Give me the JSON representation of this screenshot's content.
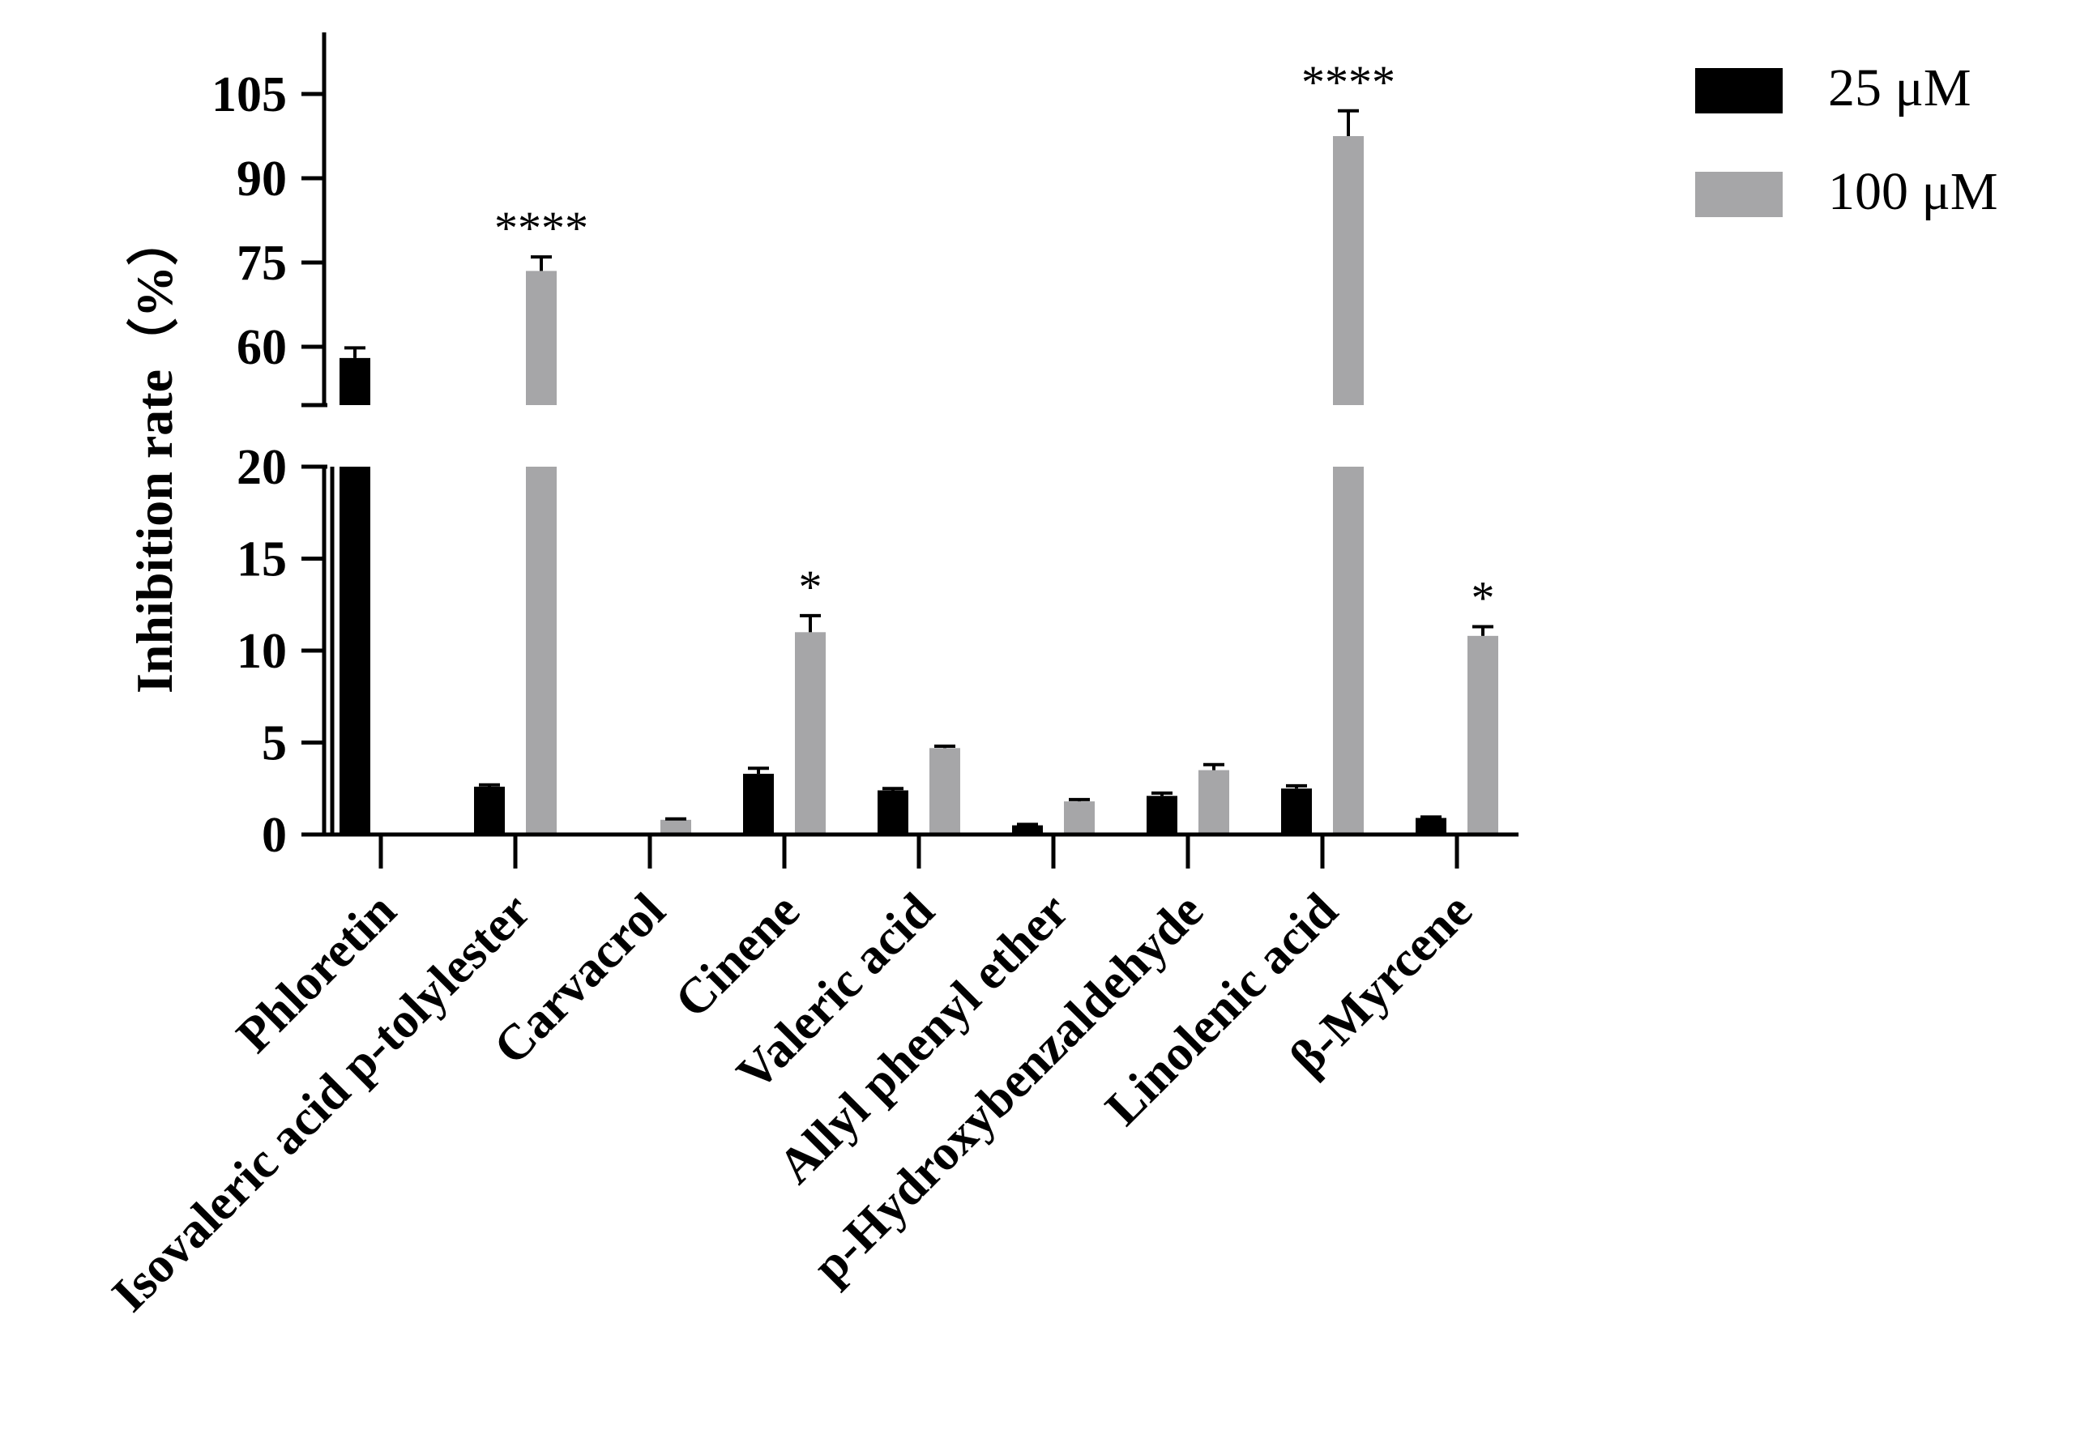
{
  "chart_data": {
    "type": "bar",
    "ylabel": "Inhibition rate（%）",
    "y_axis_segments": [
      {
        "range": [
          0,
          20
        ],
        "ticks": [
          "0",
          "5",
          "10",
          "15",
          "20"
        ]
      },
      {
        "range": [
          50,
          115
        ],
        "ticks": [
          "60",
          "75",
          "90",
          "105"
        ]
      }
    ],
    "categories": [
      "Phloretin",
      "Isovaleric acid p-tolylester",
      "Carvacrol",
      "Cinene",
      "Valeric acid",
      "Allyl phenyl ether",
      "p-Hydroxybenzaldehyde",
      "Linolenic acid",
      "β-Myrcene"
    ],
    "series": [
      {
        "name": "25 μM",
        "color": "#000000",
        "values": [
          58,
          2.6,
          null,
          3.3,
          2.4,
          0.5,
          2.1,
          2.5,
          0.9
        ],
        "errors": [
          1.8,
          0.1,
          null,
          0.3,
          0.1,
          0.05,
          0.15,
          0.15,
          0.05
        ]
      },
      {
        "name": "100  μM",
        "color": "#a6a6a8",
        "values": [
          null,
          73.5,
          0.8,
          11.0,
          4.7,
          1.8,
          3.5,
          97.5,
          10.8
        ],
        "errors": [
          null,
          2.5,
          0.05,
          0.9,
          0.1,
          0.1,
          0.3,
          4.5,
          0.5
        ]
      }
    ],
    "significance": [
      {
        "category": "Isovaleric acid p-tolylester",
        "series": "100  μM",
        "label": "****"
      },
      {
        "category": "Cinene",
        "series": "100  μM",
        "label": "*"
      },
      {
        "category": "Linolenic acid",
        "series": "100  μM",
        "label": "****"
      },
      {
        "category": "β-Myrcene",
        "series": "100  μM",
        "label": "*"
      }
    ],
    "legend_position": "top-right",
    "grid": false
  }
}
